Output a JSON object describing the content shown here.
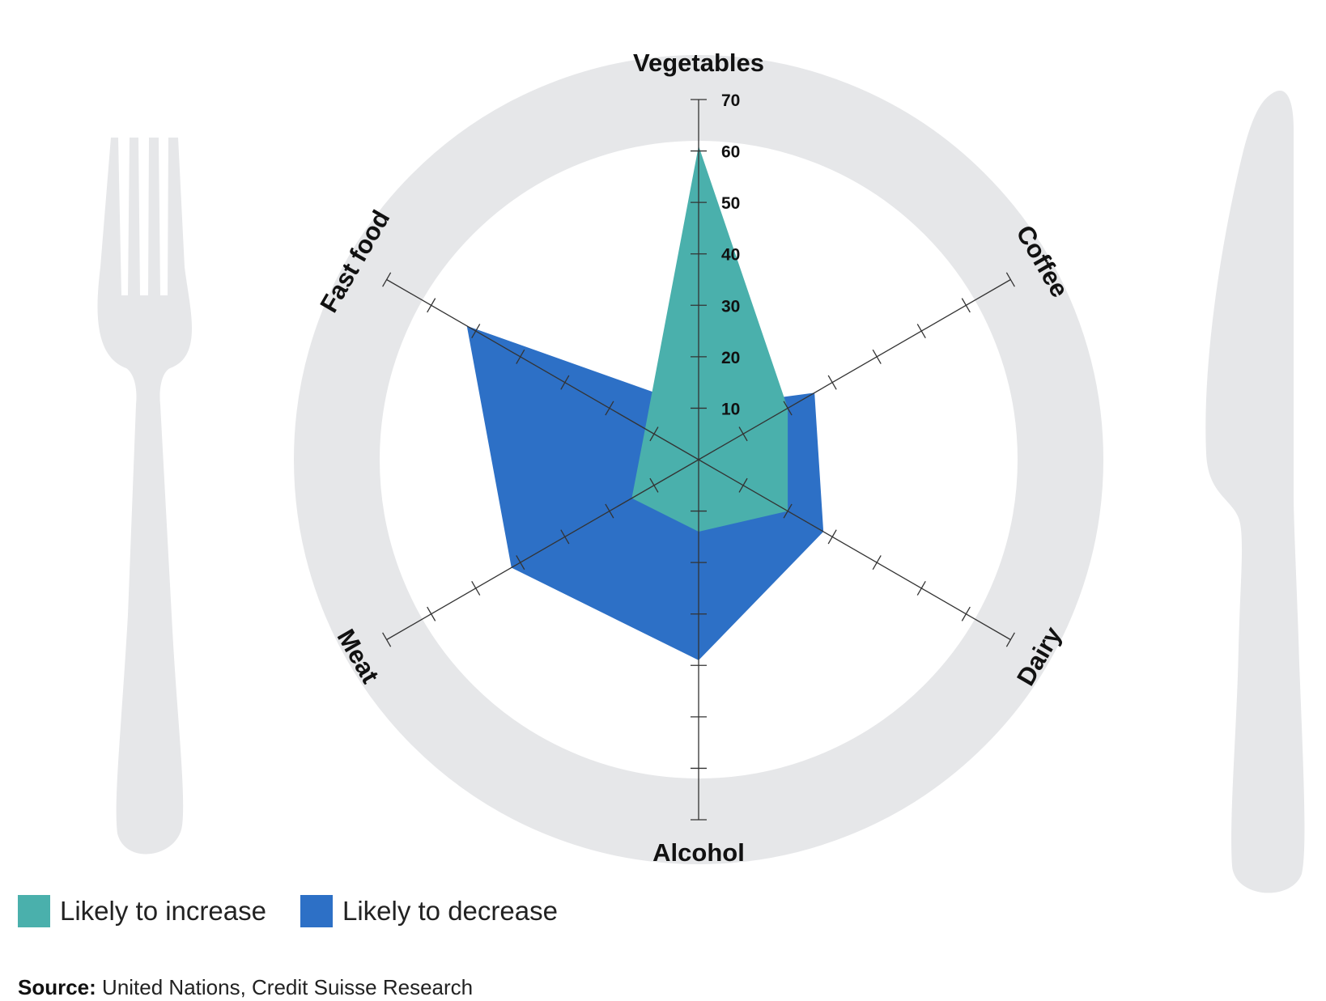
{
  "chart_data": {
    "type": "radar",
    "axes": [
      "Vegetables",
      "Coffee",
      "Dairy",
      "Alcohol",
      "Meat",
      "Fast food"
    ],
    "r_ticks": [
      10,
      20,
      30,
      40,
      50,
      60,
      70
    ],
    "r_range": [
      0,
      70
    ],
    "series": [
      {
        "name": "Likely to increase",
        "color": "#4ab0ac",
        "values": [
          61,
          20,
          20,
          14,
          15,
          12
        ]
      },
      {
        "name": "Likely to decrease",
        "color": "#2d70c6",
        "values": [
          10,
          26,
          28,
          39,
          42,
          52
        ]
      }
    ],
    "legend_position": "bottom-left"
  },
  "legend": {
    "items": [
      {
        "label": "Likely to increase",
        "color": "#4ab0ac"
      },
      {
        "label": "Likely to decrease",
        "color": "#2d70c6"
      }
    ]
  },
  "source": {
    "prefix": "Source:",
    "text": " United Nations, Credit Suisse Research"
  },
  "decor": {
    "plate_color": "#e6e7e9",
    "cutlery_color": "#e6e7e9",
    "icons": [
      "fork-icon",
      "knife-icon",
      "plate-icon"
    ]
  }
}
